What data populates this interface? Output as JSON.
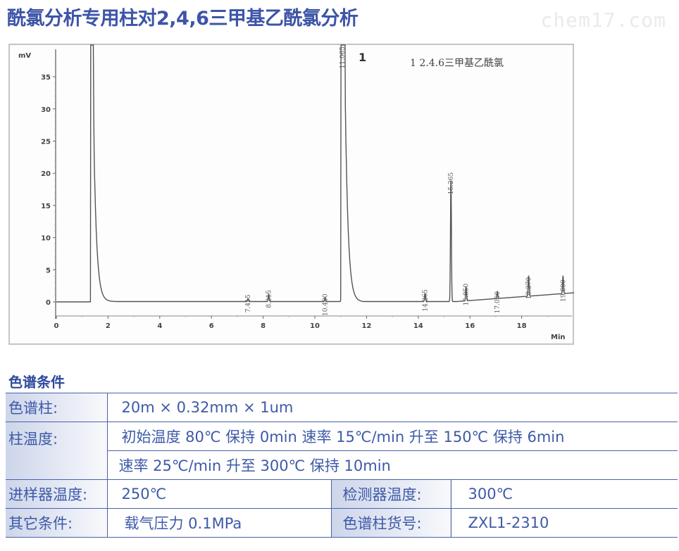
{
  "header": {
    "title": "酰氯分析专用柱对2,4,6三甲基乙酰氯分析",
    "watermark": "chem17.com"
  },
  "chart_data": {
    "type": "line",
    "title": "",
    "xlabel": "Min",
    "ylabel": "mV",
    "xlim": [
      0,
      20
    ],
    "ylim": [
      -2,
      38
    ],
    "x_ticks": [
      0,
      2,
      4,
      6,
      8,
      10,
      12,
      14,
      16,
      18
    ],
    "y_ticks": [
      0,
      5,
      10,
      15,
      20,
      25,
      30,
      35
    ],
    "grid": false,
    "legend": {
      "position": "top-right",
      "entries": [
        "1  2.4.6三甲基乙酰氯"
      ]
    },
    "peak_number_annotation": "1",
    "peaks": [
      {
        "rt": 1.4,
        "height": 40,
        "label": "",
        "note": "solvent peak (off scale)"
      },
      {
        "rt": 7.415,
        "height": 0.5,
        "label": "7.415"
      },
      {
        "rt": 8.215,
        "height": 1.2,
        "label": "8.215"
      },
      {
        "rt": 10.4,
        "height": 0.6,
        "label": "10.400"
      },
      {
        "rt": 11.065,
        "height": 40,
        "label": "11.065",
        "note": "peak 1, 2,4,6-trimethylacetyl chloride (off scale)"
      },
      {
        "rt": 14.265,
        "height": 1.3,
        "label": "14.265"
      },
      {
        "rt": 15.265,
        "height": 19.5,
        "label": "15.265"
      },
      {
        "rt": 15.85,
        "height": 2.2,
        "label": "15.850"
      },
      {
        "rt": 17.06,
        "height": 1.0,
        "label": "17.060"
      },
      {
        "rt": 18.27,
        "height": 3.2,
        "label": "18.270"
      },
      {
        "rt": 19.6,
        "height": 2.8,
        "label": "19.600"
      }
    ]
  },
  "conditions": {
    "section_title": "色谱条件",
    "column_label": "色谱柱:",
    "column_value": "20m × 0.32mm × 1um",
    "column_temp_label": "柱温度:",
    "column_temp_line1": "初始温度 80℃  保持 0min  速率 15℃/min 升至 150℃ 保持 6min",
    "column_temp_line2": "速率 25℃/min 升至 300℃ 保持 10min",
    "injector_temp_label": "进样器温度:",
    "injector_temp_value": "250℃",
    "detector_temp_label": "检测器温度:",
    "detector_temp_value": "300℃",
    "other_label": "其它条件:",
    "other_value": "载气压力 0.1MPa",
    "part_no_label": "色谱柱货号:",
    "part_no_value": "ZXL1-2310"
  },
  "colors": {
    "title": "#3d54a8",
    "table_text": "#3d5aa8",
    "table_border": "#4a61a8",
    "trace": "#555555"
  }
}
